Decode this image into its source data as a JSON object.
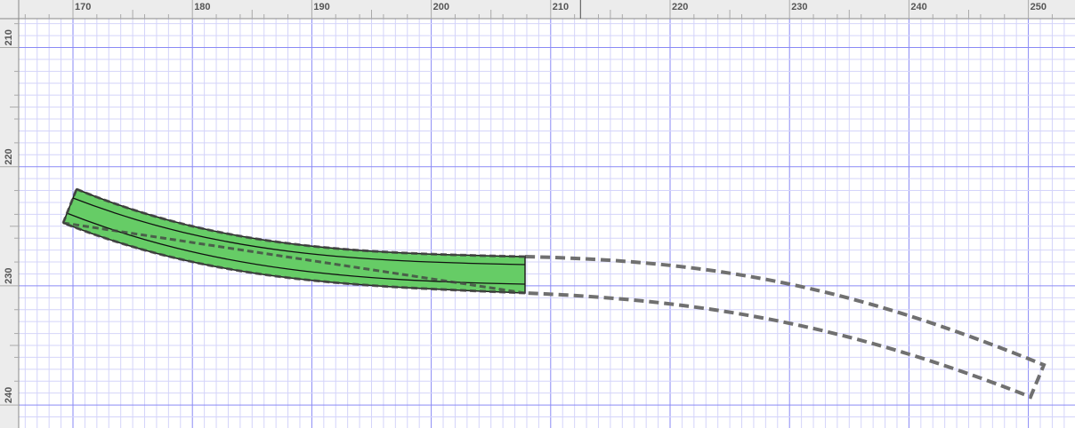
{
  "rulers": {
    "top_labels": [
      "170",
      "180",
      "190",
      "200",
      "210",
      "220",
      "230",
      "240",
      "250"
    ],
    "left_labels": [
      "210",
      "220",
      "230",
      "240"
    ],
    "cursor_x": 212.5
  },
  "grid": {
    "minor_step": 1,
    "major_step": 10,
    "minor_color": "#d4d4fa",
    "major_color": "#8a8af5"
  },
  "track": {
    "placed_fill": "#66cc66",
    "outline_color": "#333333",
    "ghost_color": "#707070"
  }
}
